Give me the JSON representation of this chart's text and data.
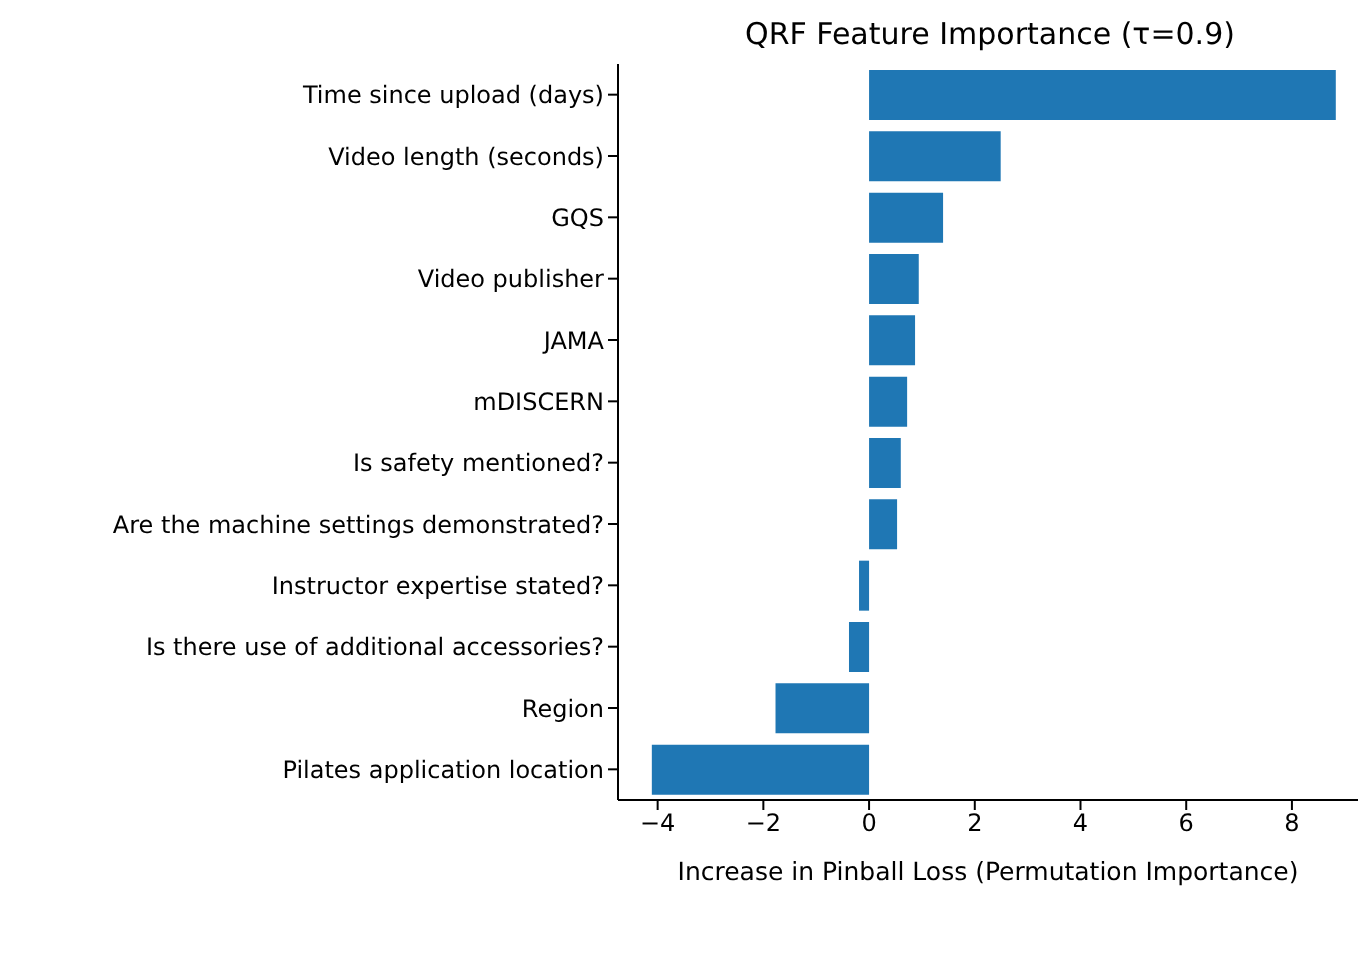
{
  "chart_data": {
    "type": "bar",
    "orientation": "horizontal",
    "title": "QRF Feature Importance (τ=0.9)",
    "xlabel": "Increase in Pinball Loss (Permutation Importance)",
    "categories": [
      "Time since upload (days)",
      "Video length (seconds)",
      "GQS",
      "Video publisher",
      "JAMA",
      "mDISCERN",
      "Is safety mentioned?",
      "Are the machine settings demonstrated?",
      "Instructor expertise stated?",
      "Is there use of additional accessories?",
      "Region",
      "Pilates application location"
    ],
    "values": [
      8.83,
      2.49,
      1.4,
      0.94,
      0.87,
      0.72,
      0.6,
      0.53,
      -0.19,
      -0.38,
      -1.77,
      -4.11
    ],
    "color": "#1f77b4",
    "xlim": [
      -4.75,
      9.25
    ],
    "xticks": [
      {
        "value": -4,
        "label": "−4"
      },
      {
        "value": -2,
        "label": "−2"
      },
      0,
      2,
      4,
      6,
      8
    ],
    "grid": false,
    "legend": false
  }
}
